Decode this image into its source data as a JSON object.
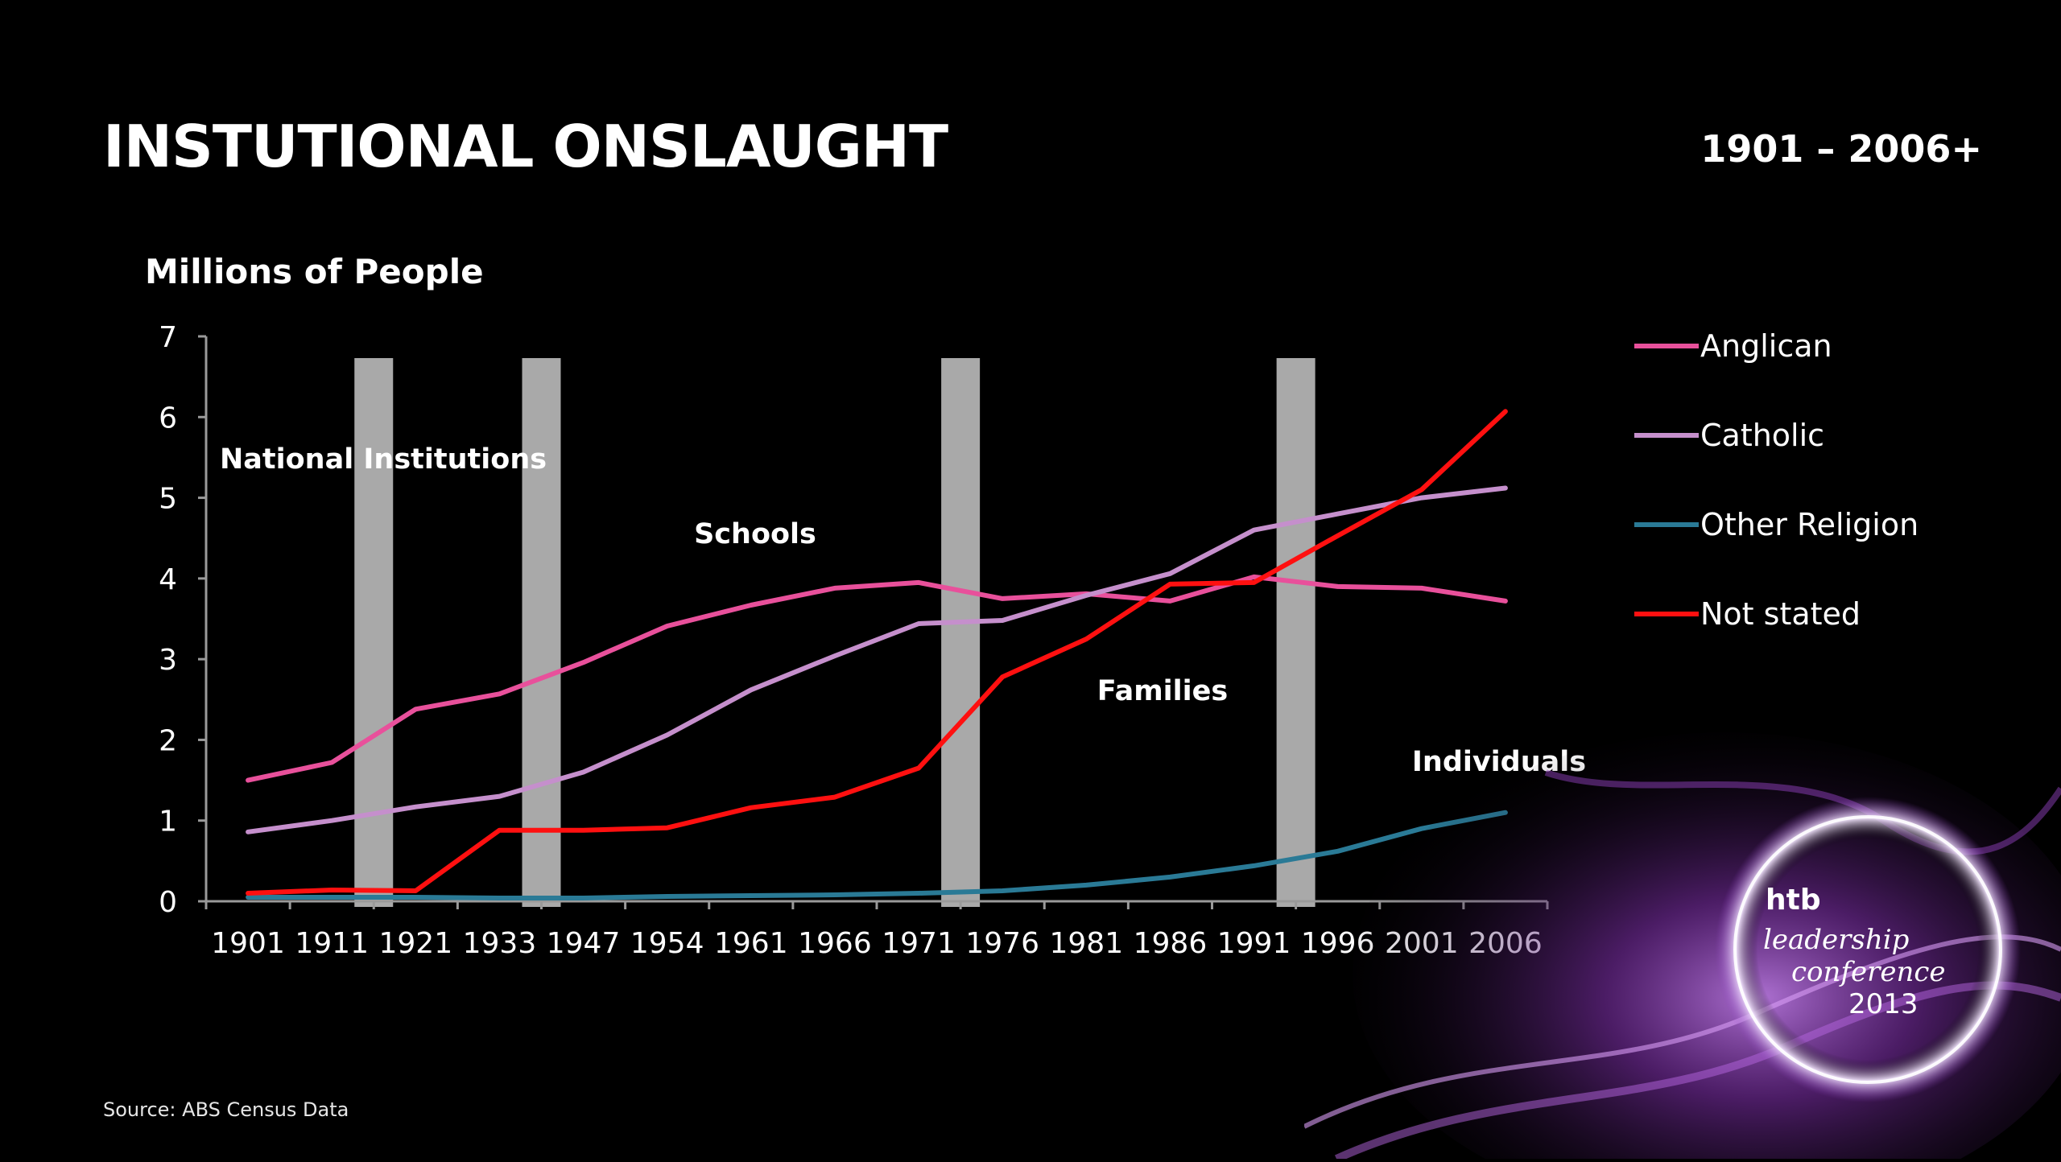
{
  "slide": {
    "title": "INSTUTIONAL ONSLAUGHT",
    "date_range": "1901 – 2006+",
    "source": "Source: ABS Census Data"
  },
  "logo": {
    "line1": "htb",
    "line2": "leadership",
    "line3": "conference",
    "line4": "2013"
  },
  "chart_data": {
    "type": "line",
    "ylabel": "Millions of People",
    "xlabel": "",
    "ylim": [
      0,
      7
    ],
    "yticks": [
      0,
      1,
      2,
      3,
      4,
      5,
      6,
      7
    ],
    "categories": [
      "1901",
      "1911",
      "1921",
      "1933",
      "1947",
      "1954",
      "1961",
      "1966",
      "1971",
      "1976",
      "1981",
      "1986",
      "1991",
      "1996",
      "2001",
      "2006"
    ],
    "series": [
      {
        "name": "Anglican",
        "color": "#e8509b",
        "values": [
          1.5,
          1.72,
          2.38,
          2.57,
          2.96,
          3.41,
          3.67,
          3.88,
          3.95,
          3.75,
          3.81,
          3.72,
          4.02,
          3.9,
          3.88,
          3.72
        ]
      },
      {
        "name": "Catholic",
        "color": "#c58fcc",
        "values": [
          0.86,
          1.0,
          1.17,
          1.3,
          1.6,
          2.06,
          2.62,
          3.04,
          3.44,
          3.48,
          3.79,
          4.06,
          4.6,
          4.8,
          5.0,
          5.12
        ]
      },
      {
        "name": "Other Religion",
        "color": "#2a7a96",
        "values": [
          0.05,
          0.05,
          0.05,
          0.04,
          0.04,
          0.06,
          0.07,
          0.08,
          0.1,
          0.13,
          0.2,
          0.3,
          0.44,
          0.62,
          0.9,
          1.1
        ]
      },
      {
        "name": "Not stated",
        "color": "#ff1010",
        "values": [
          0.1,
          0.14,
          0.13,
          0.88,
          0.88,
          0.91,
          1.16,
          1.29,
          1.65,
          2.78,
          3.25,
          3.93,
          3.95,
          4.53,
          5.1,
          6.07
        ]
      }
    ],
    "dividers_after": [
      "1911",
      "1933",
      "1971",
      "1991"
    ],
    "annotations": [
      {
        "text": "National Institutions"
      },
      {
        "text": "Schools"
      },
      {
        "text": "Families"
      },
      {
        "text": "Individuals"
      }
    ],
    "legend_position": "right",
    "grid": false
  }
}
